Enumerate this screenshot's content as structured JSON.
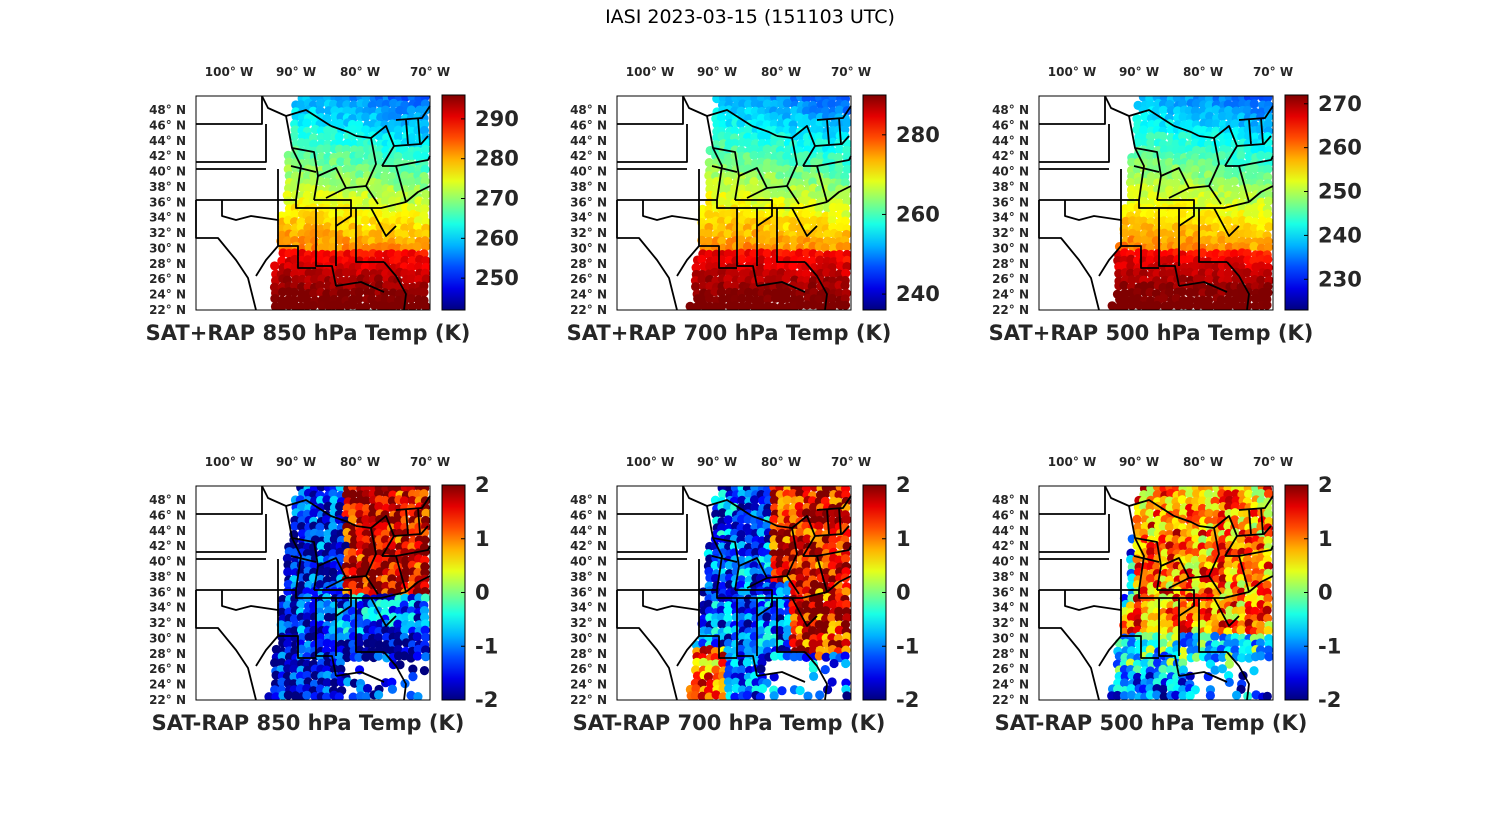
{
  "figure": {
    "title": "IASI 2023-03-15 (151103 UTC)"
  },
  "map": {
    "lon_ticks": [
      "100° W",
      "90° W",
      "80° W",
      "70° W"
    ],
    "lat_ticks": [
      "48° N",
      "46° N",
      "44° N",
      "42° N",
      "40° N",
      "38° N",
      "36° N",
      "34° N",
      "32° N",
      "30° N",
      "28° N",
      "26° N",
      "24° N",
      "22° N"
    ],
    "colormap": "jet"
  },
  "panels": [
    {
      "id": "sum850",
      "title": "SAT+RAP 850 hPa Temp (K)",
      "kind": "sum",
      "colorbar": {
        "ticks": [
          "290",
          "280",
          "270",
          "260",
          "250"
        ],
        "range": [
          242,
          296
        ]
      }
    },
    {
      "id": "sum700",
      "title": "SAT+RAP 700 hPa Temp (K)",
      "kind": "sum",
      "colorbar": {
        "ticks": [
          "280",
          "260",
          "240"
        ],
        "range": [
          236,
          290
        ]
      }
    },
    {
      "id": "sum500",
      "title": "SAT+RAP 500 hPa Temp (K)",
      "kind": "sum",
      "colorbar": {
        "ticks": [
          "270",
          "260",
          "250",
          "240",
          "230"
        ],
        "range": [
          223,
          272
        ]
      }
    },
    {
      "id": "diff850",
      "title": "SAT-RAP 850 hPa Temp (K)",
      "kind": "diff",
      "colorbar": {
        "ticks": [
          "2",
          "1",
          "0",
          "-1",
          "-2"
        ],
        "range": [
          -2,
          2
        ]
      }
    },
    {
      "id": "diff700",
      "title": "SAT-RAP 700 hPa Temp (K)",
      "kind": "diff",
      "colorbar": {
        "ticks": [
          "2",
          "1",
          "0",
          "-1",
          "-2"
        ],
        "range": [
          -2,
          2
        ]
      }
    },
    {
      "id": "diff500",
      "title": "SAT-RAP 500 hPa Temp (K)",
      "kind": "diff",
      "colorbar": {
        "ticks": [
          "2",
          "1",
          "0",
          "-1",
          "-2"
        ],
        "range": [
          -2,
          2
        ]
      }
    }
  ]
}
